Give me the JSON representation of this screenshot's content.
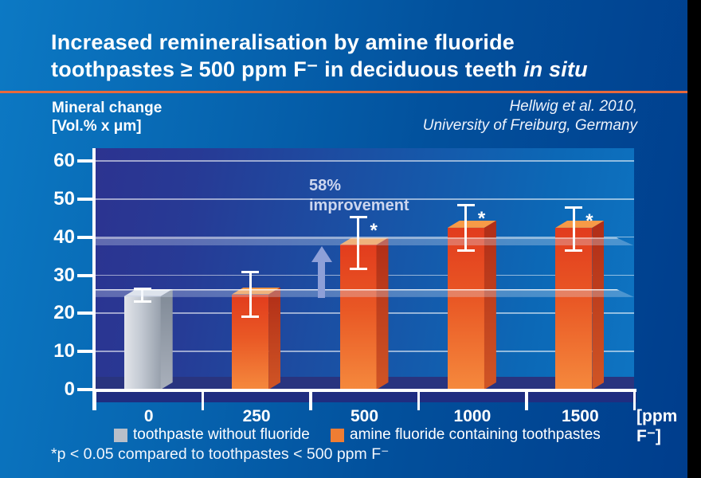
{
  "page": {
    "title_line1": "Increased remineralisation by amine fluoride",
    "title_line2": "toothpastes ≥ 500 ppm F⁻ in deciduous teeth ",
    "title_line2_italic": "in situ",
    "attribution_line1": "Hellwig et al. 2010,",
    "attribution_line2": "University of Freiburg, Germany",
    "footnote": "*p < 0.05 compared to toothpastes < 500 ppm F⁻"
  },
  "legend": {
    "control_label": "toothpaste without fluoride",
    "amine_label": "amine fluoride containing toothpastes"
  },
  "colors": {
    "control_bar": "#b9bfc9",
    "amine_bar": "#ef7d33",
    "divider": "#e8693b",
    "annotation_text": "#cdd6ee",
    "arrow": "#8ea0d8",
    "background_left": "#0c79c4",
    "background_right": "#003d8c"
  },
  "chart_data": {
    "type": "bar",
    "title": "Mineral change by toothpaste fluoride concentration",
    "ylabel_line1": "Mineral change",
    "ylabel_line2": "[Vol.% x μm]",
    "xunit": "[ppm F⁻]",
    "ylim": [
      0,
      60
    ],
    "yticks": [
      0,
      10,
      20,
      30,
      40,
      50,
      60
    ],
    "grid": true,
    "legend_position": "bottom",
    "categories": [
      "0",
      "250",
      "500",
      "1000",
      "1500"
    ],
    "values": [
      24.5,
      25,
      38,
      42.5,
      42.5
    ],
    "error_low": [
      23,
      19,
      31.5,
      36.5,
      36.5
    ],
    "error_high": [
      26.5,
      31,
      45.5,
      48.5,
      48
    ],
    "significant": [
      false,
      false,
      true,
      true,
      true
    ],
    "series_type": [
      "control",
      "amine",
      "amine",
      "amine",
      "amine"
    ],
    "significance_marker": "*",
    "reference_planes": [
      24.5,
      38
    ],
    "annotation": {
      "line1": "58%",
      "line2": "improvement"
    }
  }
}
